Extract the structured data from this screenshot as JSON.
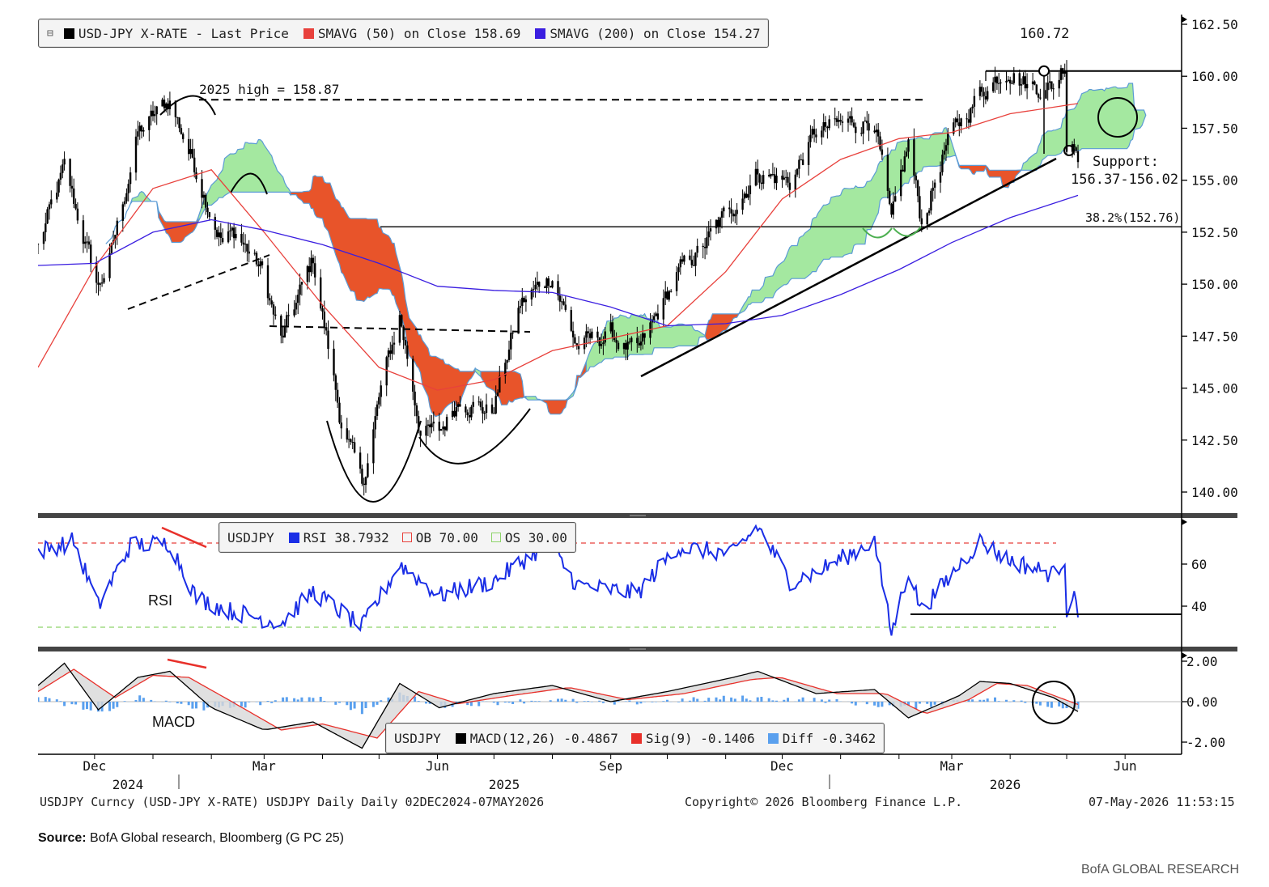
{
  "main_legend": {
    "last_price": "USD-JPY X-RATE - Last Price",
    "sma50": "SMAVG (50)  on Close 158.69",
    "sma200": "SMAVG (200)  on Close 154.27"
  },
  "rsi_legend": {
    "ticker": "USDJPY",
    "rsi": "RSI 38.7932",
    "ob": "OB 70.00",
    "os": "OS 30.00"
  },
  "macd_legend": {
    "ticker": "USDJPY",
    "macd": "MACD(12,26) -0.4867",
    "sig": "Sig(9) -0.1406",
    "diff": "Diff -0.3462"
  },
  "annotations": {
    "high_2025": "2025 high = 158.87",
    "peak": "160.72",
    "support_1": "Support:",
    "support_2": "156.37-156.02",
    "fib": "38.2%(152.76)",
    "rsi_label": "RSI",
    "macd_label": "MACD"
  },
  "footer": {
    "left": "USDJPY Curncy (USD-JPY X-RATE) USDJPY Daily Daily 02DEC2024-07MAY2026",
    "center": "Copyright© 2026 Bloomberg Finance L.P.",
    "right": "07-May-2026 11:53:15"
  },
  "source_label": "Source:",
  "source_text": " BofA Global research, Bloomberg (G PC 25)",
  "brand": "BofA GLOBAL RESEARCH",
  "colors": {
    "price": "#000000",
    "sma50": "#e8413c",
    "sma200": "#3a1ee0",
    "cloud_green": "#a4e8a0",
    "cloud_red": "#e8542a",
    "rsi": "#1a2ee6",
    "macd_diff": "#5aa0ee"
  },
  "chart_data": [
    {
      "type": "line",
      "panel": "price",
      "x_ticks": [
        "Dec",
        "Mar",
        "Jun",
        "Sep",
        "Dec",
        "Mar",
        "Jun"
      ],
      "x_years": [
        "2024",
        "2025",
        "2026"
      ],
      "y_ticks": [
        "162.50",
        "160.00",
        "157.50",
        "155.00",
        "152.50",
        "150.00",
        "147.50",
        "145.00",
        "142.50",
        "140.00"
      ],
      "ylim": [
        138.8,
        163.0
      ],
      "series": [
        {
          "name": "USD-JPY X-RATE - Last Price",
          "points": [
            [
              "2024-11-01",
              151.8
            ],
            [
              "2024-11-15",
              155.5
            ],
            [
              "2024-12-03",
              149.8
            ],
            [
              "2024-12-10",
              151.5
            ],
            [
              "2024-12-24",
              157.2
            ],
            [
              "2025-01-10",
              158.87
            ],
            [
              "2025-01-24",
              155.5
            ],
            [
              "2025-02-07",
              152.0
            ],
            [
              "2025-02-14",
              152.5
            ],
            [
              "2025-02-28",
              150.6
            ],
            [
              "2025-03-10",
              147.2
            ],
            [
              "2025-03-27",
              151.2
            ],
            [
              "2025-04-10",
              143.8
            ],
            [
              "2025-04-22",
              140.2
            ],
            [
              "2025-05-02",
              144.9
            ],
            [
              "2025-05-12",
              148.5
            ],
            [
              "2025-05-23",
              143.0
            ],
            [
              "2025-06-02",
              142.8
            ],
            [
              "2025-06-13",
              144.6
            ],
            [
              "2025-06-30",
              143.8
            ],
            [
              "2025-07-15",
              149.0
            ],
            [
              "2025-08-01",
              150.5
            ],
            [
              "2025-08-14",
              147.0
            ],
            [
              "2025-09-01",
              147.6
            ],
            [
              "2025-09-15",
              146.5
            ],
            [
              "2025-10-06",
              150.4
            ],
            [
              "2025-10-21",
              151.9
            ],
            [
              "2025-11-05",
              153.8
            ],
            [
              "2025-11-18",
              155.4
            ],
            [
              "2025-12-05",
              154.9
            ],
            [
              "2025-12-19",
              157.3
            ],
            [
              "2026-01-09",
              157.8
            ],
            [
              "2026-01-19",
              158.0
            ],
            [
              "2026-01-28",
              152.7
            ],
            [
              "2026-02-06",
              156.8
            ],
            [
              "2026-02-13",
              152.9
            ],
            [
              "2026-02-25",
              156.4
            ],
            [
              "2026-03-05",
              157.7
            ],
            [
              "2026-03-16",
              159.2
            ],
            [
              "2026-03-31",
              160.5
            ],
            [
              "2026-04-10",
              159.6
            ],
            [
              "2026-04-24",
              159.5
            ],
            [
              "2026-04-30",
              160.72
            ],
            [
              "2026-05-01",
              156.8
            ],
            [
              "2026-05-04",
              157.1
            ],
            [
              "2026-05-07",
              156.4
            ]
          ]
        },
        {
          "name": "SMAVG (50)  on Close 158.69",
          "points": [
            [
              "2024-11-01",
              146.0
            ],
            [
              "2024-12-01",
              150.8
            ],
            [
              "2025-01-01",
              154.6
            ],
            [
              "2025-02-01",
              155.5
            ],
            [
              "2025-03-01",
              152.5
            ],
            [
              "2025-04-01",
              149.0
            ],
            [
              "2025-05-01",
              146.0
            ],
            [
              "2025-06-01",
              144.9
            ],
            [
              "2025-07-01",
              145.4
            ],
            [
              "2025-08-01",
              146.8
            ],
            [
              "2025-09-01",
              147.4
            ],
            [
              "2025-10-01",
              148.0
            ],
            [
              "2025-11-01",
              150.6
            ],
            [
              "2025-12-01",
              154.1
            ],
            [
              "2026-01-01",
              156.0
            ],
            [
              "2026-02-01",
              157.0
            ],
            [
              "2026-03-01",
              157.3
            ],
            [
              "2026-04-01",
              158.2
            ],
            [
              "2026-05-07",
              158.69
            ]
          ]
        },
        {
          "name": "SMAVG (200)  on Close 154.27",
          "points": [
            [
              "2024-11-01",
              150.9
            ],
            [
              "2024-12-01",
              151.0
            ],
            [
              "2025-01-01",
              152.5
            ],
            [
              "2025-02-01",
              153.1
            ],
            [
              "2025-03-01",
              152.6
            ],
            [
              "2025-04-01",
              151.9
            ],
            [
              "2025-05-01",
              151.0
            ],
            [
              "2025-06-01",
              149.9
            ],
            [
              "2025-07-01",
              149.7
            ],
            [
              "2025-08-01",
              149.6
            ],
            [
              "2025-09-01",
              148.9
            ],
            [
              "2025-10-01",
              148.0
            ],
            [
              "2025-11-01",
              148.1
            ],
            [
              "2025-12-01",
              148.5
            ],
            [
              "2026-01-01",
              149.5
            ],
            [
              "2026-02-01",
              150.7
            ],
            [
              "2026-03-01",
              152.0
            ],
            [
              "2026-04-01",
              153.2
            ],
            [
              "2026-05-07",
              154.27
            ]
          ]
        }
      ],
      "levels": [
        {
          "label": "2025 high = 158.87",
          "value": 158.87
        },
        {
          "label": "38.2%(152.76)",
          "value": 152.76
        },
        {
          "label": "160.72",
          "value": 160.72
        }
      ]
    },
    {
      "type": "line",
      "panel": "rsi",
      "y_ticks": [
        "60",
        "40"
      ],
      "ylim": [
        24,
        81
      ],
      "series": [
        {
          "name": "RSI 38.7932",
          "points": [
            [
              "2024-11-01",
              66
            ],
            [
              "2024-11-20",
              71
            ],
            [
              "2024-12-03",
              40
            ],
            [
              "2024-12-20",
              69
            ],
            [
              "2025-01-10",
              70
            ],
            [
              "2025-01-24",
              44
            ],
            [
              "2025-02-10",
              38
            ],
            [
              "2025-03-10",
              32
            ],
            [
              "2025-03-27",
              47
            ],
            [
              "2025-04-22",
              30
            ],
            [
              "2025-05-12",
              60
            ],
            [
              "2025-06-02",
              45
            ],
            [
              "2025-07-01",
              52
            ],
            [
              "2025-07-30",
              70
            ],
            [
              "2025-08-14",
              50
            ],
            [
              "2025-09-15",
              46
            ],
            [
              "2025-10-06",
              68
            ],
            [
              "2025-11-05",
              65
            ],
            [
              "2025-11-18",
              78
            ],
            [
              "2025-12-05",
              52
            ],
            [
              "2025-12-19",
              56
            ],
            [
              "2026-01-19",
              71
            ],
            [
              "2026-01-28",
              27
            ],
            [
              "2026-02-06",
              57
            ],
            [
              "2026-02-13",
              38
            ],
            [
              "2026-03-16",
              71
            ],
            [
              "2026-03-31",
              62
            ],
            [
              "2026-04-24",
              55
            ],
            [
              "2026-04-30",
              63
            ],
            [
              "2026-05-01",
              38
            ],
            [
              "2026-05-04",
              45
            ],
            [
              "2026-05-07",
              38.79
            ]
          ]
        }
      ],
      "levels": [
        {
          "label": "OB 70.00",
          "value": 70
        },
        {
          "label": "OS 30.00",
          "value": 30
        }
      ]
    },
    {
      "type": "line",
      "panel": "macd",
      "y_ticks": [
        "2.00",
        "0.00",
        "-2.00"
      ],
      "ylim": [
        -2.7,
        2.2
      ],
      "series": [
        {
          "name": "MACD(12,26) -0.4867",
          "points": [
            [
              "2024-11-01",
              0.8
            ],
            [
              "2024-11-15",
              1.9
            ],
            [
              "2024-12-03",
              -0.4
            ],
            [
              "2024-12-24",
              1.2
            ],
            [
              "2025-01-10",
              1.5
            ],
            [
              "2025-02-01",
              -0.3
            ],
            [
              "2025-03-01",
              -1.4
            ],
            [
              "2025-03-27",
              -1.0
            ],
            [
              "2025-04-22",
              -2.3
            ],
            [
              "2025-05-12",
              0.9
            ],
            [
              "2025-06-02",
              -0.3
            ],
            [
              "2025-07-01",
              0.4
            ],
            [
              "2025-08-01",
              0.8
            ],
            [
              "2025-09-01",
              0.0
            ],
            [
              "2025-10-01",
              0.5
            ],
            [
              "2025-11-05",
              1.2
            ],
            [
              "2025-11-18",
              1.5
            ],
            [
              "2025-12-19",
              0.4
            ],
            [
              "2026-01-19",
              0.6
            ],
            [
              "2026-02-06",
              -0.8
            ],
            [
              "2026-03-05",
              0.3
            ],
            [
              "2026-03-16",
              1.0
            ],
            [
              "2026-04-01",
              0.9
            ],
            [
              "2026-04-24",
              0.2
            ],
            [
              "2026-05-07",
              -0.4867
            ]
          ]
        },
        {
          "name": "Sig(9) -0.1406",
          "points": [
            [
              "2024-11-01",
              0.5
            ],
            [
              "2024-11-20",
              1.6
            ],
            [
              "2024-12-12",
              0.2
            ],
            [
              "2025-01-01",
              1.3
            ],
            [
              "2025-01-20",
              1.2
            ],
            [
              "2025-02-10",
              0.1
            ],
            [
              "2025-03-10",
              -1.4
            ],
            [
              "2025-04-01",
              -1.1
            ],
            [
              "2025-04-30",
              -1.8
            ],
            [
              "2025-05-22",
              0.5
            ],
            [
              "2025-06-12",
              -0.1
            ],
            [
              "2025-07-10",
              0.3
            ],
            [
              "2025-08-10",
              0.7
            ],
            [
              "2025-09-10",
              0.1
            ],
            [
              "2025-10-10",
              0.4
            ],
            [
              "2025-11-15",
              1.1
            ],
            [
              "2025-11-30",
              1.2
            ],
            [
              "2025-12-30",
              0.4
            ],
            [
              "2026-01-25",
              0.4
            ],
            [
              "2026-02-15",
              -0.6
            ],
            [
              "2026-03-10",
              0.1
            ],
            [
              "2026-03-25",
              0.9
            ],
            [
              "2026-04-10",
              0.8
            ],
            [
              "2026-05-07",
              -0.1406
            ]
          ]
        },
        {
          "name": "Diff -0.3462",
          "values_note": "histogram",
          "points": [
            [
              "2024-11-01",
              0.3
            ],
            [
              "2024-12-03",
              -0.6
            ],
            [
              "2024-12-24",
              0.2
            ],
            [
              "2025-02-01",
              -0.4
            ],
            [
              "2025-03-27",
              0.3
            ],
            [
              "2025-04-22",
              -0.5
            ],
            [
              "2025-05-12",
              0.4
            ],
            [
              "2025-06-02",
              -0.2
            ],
            [
              "2025-08-01",
              0.1
            ],
            [
              "2025-09-01",
              -0.1
            ],
            [
              "2025-11-05",
              0.2
            ],
            [
              "2025-12-19",
              0.1
            ],
            [
              "2026-02-06",
              -0.3
            ],
            [
              "2026-03-16",
              0.2
            ],
            [
              "2026-05-07",
              -0.3462
            ]
          ]
        }
      ]
    }
  ]
}
